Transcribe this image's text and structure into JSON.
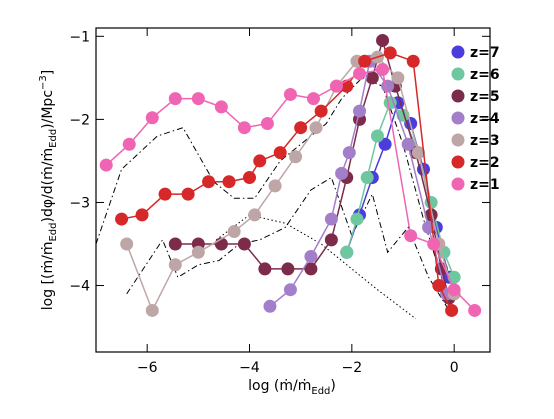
{
  "chart_data": {
    "type": "line",
    "x_label": [
      "log (ṁ/ṁ",
      "Edd",
      ")"
    ],
    "y_label": [
      "log [(ṁ/ṁ",
      "Edd",
      ")dφ/d(ṁ/ṁ",
      "Edd",
      ")/Mpc",
      "−3",
      "]"
    ],
    "xlim": [
      -7,
      0.7
    ],
    "ylim": [
      -4.8,
      -0.9
    ],
    "xticks": [
      {
        "value": -6,
        "label": "−6"
      },
      {
        "value": -4,
        "label": "−4"
      },
      {
        "value": -2,
        "label": "−2"
      },
      0
    ],
    "yticks": [
      {
        "value": -4,
        "label": "−4"
      },
      {
        "value": -3,
        "label": "−3"
      },
      {
        "value": -2,
        "label": "−2"
      },
      {
        "value": -1,
        "label": "−1"
      }
    ],
    "legend": "upper right",
    "series": [
      {
        "color": "#000000",
        "dash": "dashdot",
        "x": [
          -7,
          -6.5,
          -5.8,
          -5.3,
          -4.7,
          -4.3,
          -3.9,
          -3.4,
          -2.9,
          -2.5,
          -2.2,
          -1.8,
          -1.4,
          -1.0,
          -0.6,
          -0.2
        ],
        "values": [
          -3.5,
          -2.6,
          -2.2,
          -2.1,
          -2.75,
          -2.95,
          -2.95,
          -2.5,
          -2.25,
          -2.05,
          -1.75,
          -1.5,
          -1.6,
          -2.3,
          -3.2,
          -4.0
        ]
      },
      {
        "color": "#000000",
        "dash": "dashdot",
        "x": [
          -6.4,
          -5.7,
          -5.4,
          -5.0,
          -4.6,
          -4.2,
          -3.8,
          -3.3,
          -2.8,
          -2.4,
          -2.0,
          -1.6,
          -1.3,
          -0.9,
          -0.5,
          -0.1
        ],
        "values": [
          -4.1,
          -3.45,
          -3.9,
          -3.75,
          -3.7,
          -3.5,
          -3.45,
          -3.3,
          -2.85,
          -2.7,
          -3.4,
          -2.9,
          -3.6,
          -3.3,
          -3.9,
          -4.3
        ]
      },
      {
        "color": "#000000",
        "dash": "dotted",
        "x": [
          -4.65,
          -4.0,
          -3.3,
          -2.6,
          -2.0,
          -1.5,
          -0.75
        ],
        "values": [
          -3.45,
          -3.15,
          -3.25,
          -3.5,
          -3.8,
          -4.05,
          -4.4
        ]
      },
      {
        "name": "z=7",
        "color": "#4b3ddb",
        "x": [
          -2.1,
          -1.85,
          -1.6,
          -1.35,
          -1.1,
          -0.85,
          -0.6,
          -0.35,
          -0.1
        ],
        "values": [
          -3.6,
          -3.15,
          -2.7,
          -2.3,
          -1.8,
          -2.05,
          -2.6,
          -3.3,
          -3.9
        ]
      },
      {
        "name": "z=6",
        "color": "#6ec79f",
        "x": [
          -2.1,
          -1.9,
          -1.7,
          -1.5,
          -1.25,
          -1.0,
          -0.7,
          -0.45,
          -0.2,
          0.0
        ],
        "values": [
          -3.6,
          -3.2,
          -2.7,
          -2.2,
          -1.8,
          -1.95,
          -2.4,
          -3.0,
          -3.6,
          -3.9
        ]
      },
      {
        "name": "z=5",
        "color": "#7d2b4b",
        "x": [
          -5.45,
          -5.0,
          -4.55,
          -4.1,
          -3.7,
          -3.25,
          -2.8,
          -2.4,
          -2.1,
          -1.85,
          -1.6,
          -1.4,
          -1.15,
          -0.75,
          -0.45,
          -0.25,
          -0.1
        ],
        "values": [
          -3.5,
          -3.5,
          -3.5,
          -3.5,
          -3.8,
          -3.8,
          -3.8,
          -3.45,
          -2.7,
          -2.0,
          -1.5,
          -1.05,
          -1.6,
          -2.4,
          -3.15,
          -3.8,
          -4.15
        ]
      },
      {
        "name": "z=4",
        "color": "#a47fc9",
        "x": [
          -3.6,
          -3.2,
          -2.8,
          -2.4,
          -2.2,
          -2.05,
          -1.85,
          -1.65,
          -1.3,
          -0.9,
          -0.5,
          -0.15
        ],
        "values": [
          -4.25,
          -4.05,
          -3.65,
          -3.2,
          -2.65,
          -2.4,
          -1.9,
          -1.3,
          -1.6,
          -2.3,
          -3.3,
          -4.1
        ]
      },
      {
        "name": "z=3",
        "color": "#bfa6a6",
        "x": [
          -6.4,
          -5.9,
          -5.45,
          -5.0,
          -4.3,
          -3.9,
          -3.5,
          -3.1,
          -2.7,
          -2.3,
          -1.9,
          -1.5,
          -1.1,
          -0.7,
          -0.3,
          0.0
        ],
        "values": [
          -3.5,
          -4.3,
          -3.75,
          -3.6,
          -3.35,
          -3.15,
          -2.8,
          -2.45,
          -2.1,
          -1.6,
          -1.3,
          -1.25,
          -1.5,
          -2.4,
          -3.5,
          -4.1
        ]
      },
      {
        "name": "z=2",
        "color": "#d62828",
        "x": [
          -6.5,
          -6.1,
          -5.65,
          -5.2,
          -4.8,
          -4.4,
          -4.0,
          -3.8,
          -3.4,
          -3.0,
          -2.6,
          -2.1,
          -1.75,
          -1.25,
          -0.8,
          -0.3,
          -0.05
        ],
        "values": [
          -3.2,
          -3.15,
          -2.9,
          -2.9,
          -2.75,
          -2.75,
          -2.7,
          -2.5,
          -2.4,
          -2.1,
          -1.9,
          -1.6,
          -1.3,
          -1.2,
          -1.3,
          -4.0,
          -4.3
        ]
      },
      {
        "name": "z=1",
        "color": "#f065b3",
        "x": [
          -6.8,
          -6.35,
          -5.9,
          -5.45,
          -5.0,
          -4.55,
          -4.1,
          -3.65,
          -3.2,
          -2.75,
          -2.3,
          -1.85,
          -1.4,
          -0.85,
          -0.4,
          0.0,
          0.4
        ],
        "values": [
          -2.55,
          -2.3,
          -1.98,
          -1.75,
          -1.75,
          -1.85,
          -2.1,
          -2.05,
          -1.7,
          -1.75,
          -1.6,
          -1.45,
          -1.4,
          -3.4,
          -3.5,
          -4.05,
          -4.3
        ]
      }
    ]
  }
}
